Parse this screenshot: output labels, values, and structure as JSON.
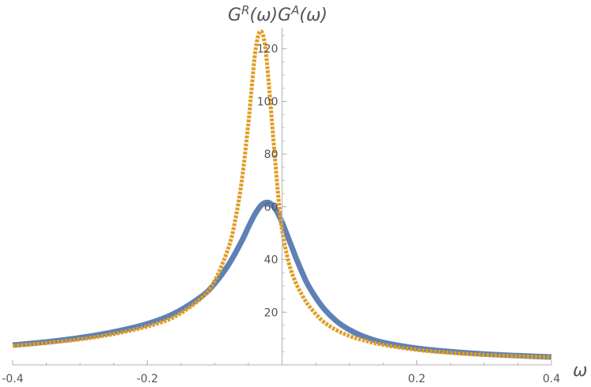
{
  "chart_data": {
    "type": "line",
    "title": "",
    "xlabel": "ω",
    "ylabel_parts": {
      "g1": "G",
      "sup1": "R",
      "mid1": "(ω)",
      "g2": "G",
      "sup2": "A",
      "mid2": "(ω)"
    },
    "xlim": [
      -0.4,
      0.4
    ],
    "ylim": [
      0,
      128
    ],
    "x_ticks": [
      -0.4,
      -0.2,
      0.2,
      0.4
    ],
    "x_tick_labels": [
      "-0.4",
      "-0.2",
      "0.2",
      "0.4"
    ],
    "y_ticks": [
      20,
      40,
      60,
      80,
      100,
      120
    ],
    "y_tick_labels": [
      "20",
      "40",
      "60",
      "80",
      "100",
      "120"
    ],
    "grid": false,
    "series": [
      {
        "color": "#5e81b5",
        "style": "thick-solid",
        "x": [
          -0.4,
          -0.35,
          -0.3,
          -0.25,
          -0.2,
          -0.16,
          -0.12,
          -0.1,
          -0.08,
          -0.06,
          -0.05,
          -0.04,
          -0.03,
          -0.02,
          -0.01,
          0.0,
          0.01,
          0.02,
          0.03,
          0.04,
          0.06,
          0.08,
          0.1,
          0.12,
          0.15,
          0.2,
          0.25,
          0.3,
          0.35,
          0.4
        ],
        "values": [
          7.5,
          8.7,
          10.3,
          12.5,
          15.6,
          19.5,
          25.9,
          30.9,
          37.8,
          46.9,
          52.3,
          57.3,
          60.8,
          61.6,
          59.2,
          54.1,
          47.7,
          41.1,
          35.0,
          29.7,
          22.0,
          16.8,
          13.3,
          10.9,
          8.5,
          6.3,
          5.0,
          4.1,
          3.5,
          3.0
        ]
      },
      {
        "color": "#e19c24",
        "style": "dotted",
        "x": [
          -0.4,
          -0.35,
          -0.3,
          -0.25,
          -0.2,
          -0.16,
          -0.12,
          -0.1,
          -0.08,
          -0.07,
          -0.06,
          -0.05,
          -0.045,
          -0.04,
          -0.035,
          -0.03,
          -0.025,
          -0.02,
          -0.015,
          -0.01,
          -0.005,
          0.0,
          0.01,
          0.02,
          0.03,
          0.04,
          0.06,
          0.08,
          0.1,
          0.12,
          0.15,
          0.2,
          0.25,
          0.3,
          0.35,
          0.4
        ],
        "values": [
          7.2,
          8.3,
          9.7,
          11.7,
          14.6,
          18.2,
          25.3,
          31.9,
          44.1,
          54.3,
          69.5,
          91.7,
          105.5,
          118.3,
          125.3,
          126.3,
          120.8,
          107.7,
          92.4,
          76.8,
          62.5,
          51.2,
          38.8,
          31.4,
          26.4,
          22.4,
          16.7,
          13.3,
          11.0,
          9.4,
          7.6,
          5.7,
          4.6,
          3.8,
          3.3,
          2.9
        ]
      }
    ]
  }
}
